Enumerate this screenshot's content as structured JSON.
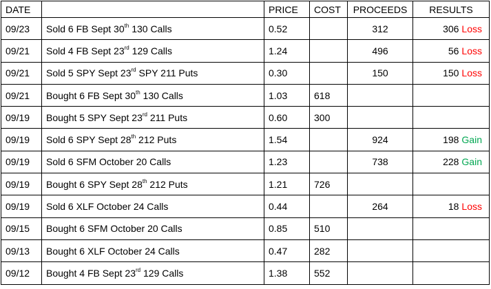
{
  "table": {
    "headers": {
      "date": "DATE",
      "description": "",
      "price": "PRICE",
      "cost": "COST",
      "proceeds": "PROCEEDS",
      "results": "RESULTS"
    },
    "colors": {
      "loss": "#ff0000",
      "gain": "#00a651"
    },
    "rows": [
      {
        "date": "09/23",
        "desc_pre": "Sold 6 FB Sept 30",
        "desc_sup": "th",
        "desc_post": " 130 Calls",
        "price": "0.52",
        "cost": "",
        "proceeds": "312",
        "result_value": "306",
        "result_label": "Loss",
        "result_type": "loss"
      },
      {
        "date": "09/21",
        "desc_pre": "Sold 4 FB Sept 23",
        "desc_sup": "rd",
        "desc_post": " 129 Calls",
        "price": "1.24",
        "cost": "",
        "proceeds": "496",
        "result_value": "56",
        "result_label": "Loss",
        "result_type": "loss"
      },
      {
        "date": "09/21",
        "desc_pre": "Sold 5 SPY Sept 23",
        "desc_sup": "rd",
        "desc_post": " SPY 211 Puts",
        "price": "0.30",
        "cost": "",
        "proceeds": "150",
        "result_value": "150",
        "result_label": "Loss",
        "result_type": "loss"
      },
      {
        "date": "09/21",
        "desc_pre": "Bought 6 FB Sept 30",
        "desc_sup": "th",
        "desc_post": " 130 Calls",
        "price": "1.03",
        "cost": "618",
        "proceeds": "",
        "result_value": "",
        "result_label": "",
        "result_type": ""
      },
      {
        "date": "09/19",
        "desc_pre": "Bought 5 SPY Sept 23",
        "desc_sup": "rd",
        "desc_post": " 211 Puts",
        "price": "0.60",
        "cost": "300",
        "proceeds": "",
        "result_value": "",
        "result_label": "",
        "result_type": ""
      },
      {
        "date": "09/19",
        "desc_pre": "Sold 6 SPY Sept 28",
        "desc_sup": "th",
        "desc_post": " 212 Puts",
        "price": "1.54",
        "cost": "",
        "proceeds": "924",
        "result_value": "198",
        "result_label": "Gain",
        "result_type": "gain"
      },
      {
        "date": "09/19",
        "desc_pre": "Sold 6 SFM October 20 Calls",
        "desc_sup": "",
        "desc_post": "",
        "price": "1.23",
        "cost": "",
        "proceeds": "738",
        "result_value": "228",
        "result_label": "Gain",
        "result_type": "gain"
      },
      {
        "date": "09/19",
        "desc_pre": "Bought 6 SPY Sept 28",
        "desc_sup": "th",
        "desc_post": " 212 Puts",
        "price": "1.21",
        "cost": "726",
        "proceeds": "",
        "result_value": "",
        "result_label": "",
        "result_type": ""
      },
      {
        "date": "09/19",
        "desc_pre": "Sold 6 XLF October 24 Calls",
        "desc_sup": "",
        "desc_post": "",
        "price": "0.44",
        "cost": "",
        "proceeds": "264",
        "result_value": "18",
        "result_label": "Loss",
        "result_type": "loss"
      },
      {
        "date": "09/15",
        "desc_pre": "Bought 6 SFM October 20 Calls",
        "desc_sup": "",
        "desc_post": "",
        "price": "0.85",
        "cost": "510",
        "proceeds": "",
        "result_value": "",
        "result_label": "",
        "result_type": ""
      },
      {
        "date": "09/13",
        "desc_pre": "Bought 6 XLF October 24 Calls",
        "desc_sup": "",
        "desc_post": "",
        "price": "0.47",
        "cost": "282",
        "proceeds": "",
        "result_value": "",
        "result_label": "",
        "result_type": ""
      },
      {
        "date": "09/12",
        "desc_pre": "Bought 4 FB Sept 23",
        "desc_sup": "rd",
        "desc_post": " 129 Calls",
        "price": "1.38",
        "cost": "552",
        "proceeds": "",
        "result_value": "",
        "result_label": "",
        "result_type": ""
      }
    ]
  }
}
